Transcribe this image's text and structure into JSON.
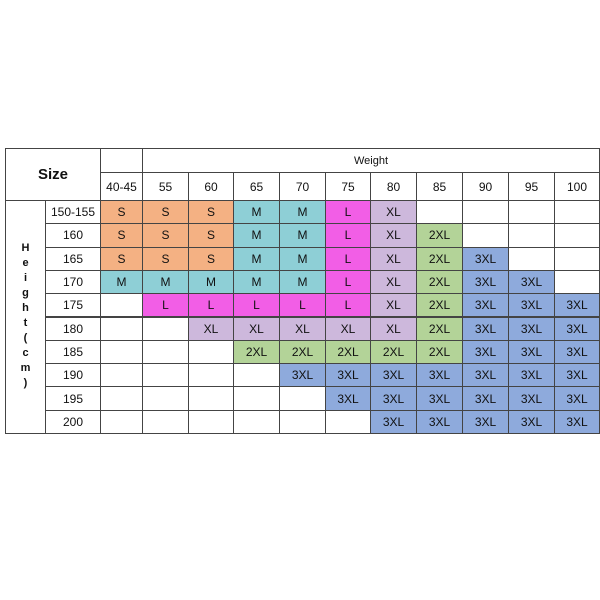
{
  "header": {
    "size_label": "Size",
    "weight_label": "Weight",
    "height_label": "Height(cm)",
    "weights": [
      "40-45",
      "55",
      "60",
      "65",
      "70",
      "75",
      "80",
      "85",
      "90",
      "95",
      "100"
    ]
  },
  "rows": [
    {
      "height": "150-155",
      "sizes": [
        "S",
        "S",
        "S",
        "M",
        "M",
        "L",
        "XL",
        null,
        null,
        null,
        null
      ]
    },
    {
      "height": "160",
      "sizes": [
        "S",
        "S",
        "S",
        "M",
        "M",
        "L",
        "XL",
        "2XL",
        null,
        null,
        null
      ]
    },
    {
      "height": "165",
      "sizes": [
        "S",
        "S",
        "S",
        "M",
        "M",
        "L",
        "XL",
        "2XL",
        "3XL",
        null,
        null
      ]
    },
    {
      "height": "170",
      "sizes": [
        "M",
        "M",
        "M",
        "M",
        "M",
        "L",
        "XL",
        "2XL",
        "3XL",
        "3XL",
        null
      ]
    },
    {
      "height": "175",
      "sizes": [
        null,
        "L",
        "L",
        "L",
        "L",
        "L",
        "XL",
        "2XL",
        "3XL",
        "3XL",
        "3XL"
      ]
    },
    {
      "height": "180",
      "sizes": [
        null,
        null,
        "XL",
        "XL",
        "XL",
        "XL",
        "XL",
        "2XL",
        "3XL",
        "3XL",
        "3XL"
      ]
    },
    {
      "height": "185",
      "sizes": [
        null,
        null,
        null,
        "2XL",
        "2XL",
        "2XL",
        "2XL",
        "2XL",
        "3XL",
        "3XL",
        "3XL"
      ]
    },
    {
      "height": "190",
      "sizes": [
        null,
        null,
        null,
        null,
        "3XL",
        "3XL",
        "3XL",
        "3XL",
        "3XL",
        "3XL",
        "3XL"
      ]
    },
    {
      "height": "195",
      "sizes": [
        null,
        null,
        null,
        null,
        null,
        "3XL",
        "3XL",
        "3XL",
        "3XL",
        "3XL",
        "3XL"
      ]
    },
    {
      "height": "200",
      "sizes": [
        null,
        null,
        null,
        null,
        null,
        null,
        "3XL",
        "3XL",
        "3XL",
        "3XL",
        "3XL"
      ]
    }
  ],
  "colors": {
    "S": "#f4b183",
    "M": "#8ecfd6",
    "L": "#f25ee6",
    "XL": "#cdb8dc",
    "2XL": "#b3d398",
    "3XL": "#8eaadc"
  }
}
